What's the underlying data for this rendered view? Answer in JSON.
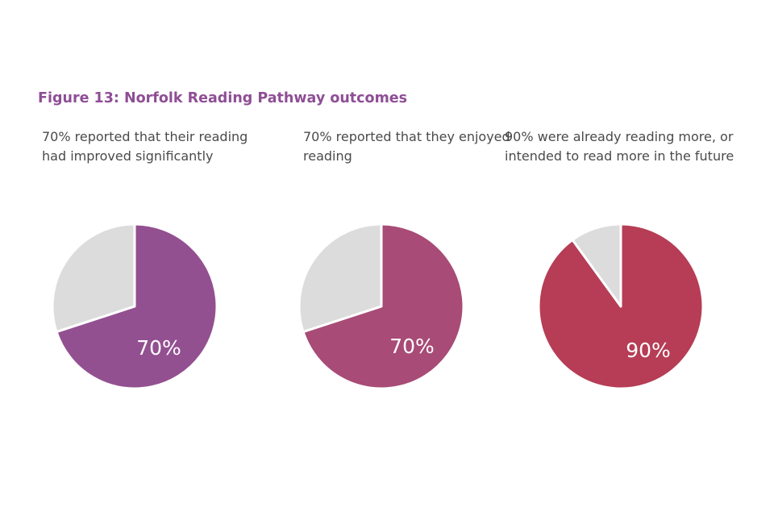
{
  "figure": {
    "title": "Figure 13: Norfolk Reading Pathway outcomes"
  },
  "chart_data": [
    {
      "type": "pie",
      "title": "70% reported that their reading had improved significantly",
      "values": [
        70,
        30
      ],
      "data_label": "70%",
      "colors": [
        "#935091",
        "#dcdcdc"
      ]
    },
    {
      "type": "pie",
      "title": "70% reported that they enjoyed reading",
      "values": [
        70,
        30
      ],
      "data_label": "70%",
      "colors": [
        "#a84b76",
        "#dcdcdc"
      ]
    },
    {
      "type": "pie",
      "title": "90% were already reading more, or intended to read more in the future",
      "values": [
        90,
        10
      ],
      "data_label": "90%",
      "colors": [
        "#b63d55",
        "#dcdcdc"
      ]
    }
  ]
}
